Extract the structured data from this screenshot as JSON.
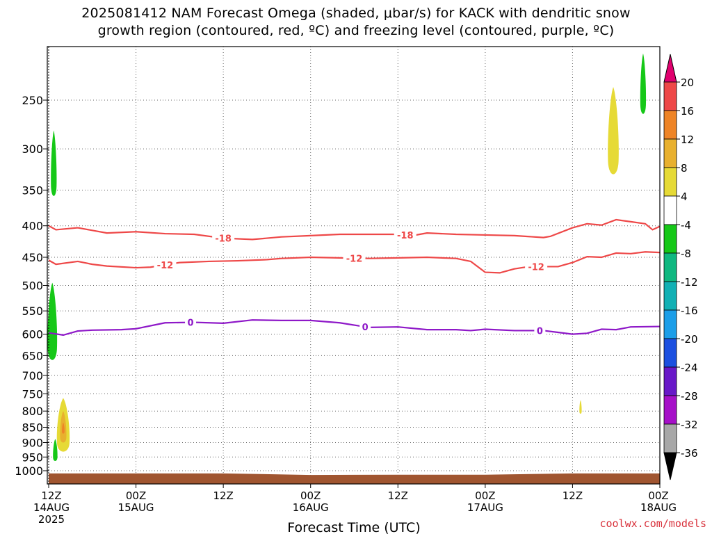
{
  "chart_data": {
    "type": "contour",
    "title_lines": [
      "2025081412 NAM Forecast Omega (shaded, μbar/s) for KACK with dendritic snow",
      "growth region (contoured, red, ºC) and freezing level (contoured, purple, ºC)"
    ],
    "xlabel": "Forecast Time (UTC)",
    "x_ticks": [
      {
        "hour": 0,
        "line1": "12Z",
        "line2": "14AUG",
        "line3": "2025"
      },
      {
        "hour": 12,
        "line1": "00Z",
        "line2": "15AUG",
        "line3": ""
      },
      {
        "hour": 24,
        "line1": "12Z",
        "line2": "",
        "line3": ""
      },
      {
        "hour": 36,
        "line1": "00Z",
        "line2": "16AUG",
        "line3": ""
      },
      {
        "hour": 48,
        "line1": "12Z",
        "line2": "",
        "line3": ""
      },
      {
        "hour": 60,
        "line1": "00Z",
        "line2": "17AUG",
        "line3": ""
      },
      {
        "hour": 72,
        "line1": "12Z",
        "line2": "",
        "line3": ""
      },
      {
        "hour": 84,
        "line1": "00Z",
        "line2": "18AUG",
        "line3": ""
      }
    ],
    "y_scale": "log-pressure",
    "y_ticks": [
      250,
      300,
      350,
      400,
      450,
      500,
      550,
      600,
      650,
      700,
      750,
      800,
      850,
      900,
      950,
      1000
    ],
    "colorbar": {
      "levels": [
        20,
        16,
        12,
        8,
        4,
        -4,
        -8,
        -12,
        -16,
        -20,
        -24,
        -28,
        -32,
        -36
      ],
      "colors": [
        "#e0006e",
        "#ee4848",
        "#ee8426",
        "#e8b02e",
        "#e6da36",
        "#ffffff",
        "#16c818",
        "#10b880",
        "#12b0b4",
        "#1c9ee8",
        "#1c50e0",
        "#6818c8",
        "#a610c8",
        "#a8a8a8",
        "#000000"
      ]
    },
    "contours": [
      {
        "label": "-18",
        "color": "#ee4848",
        "label_hours": [
          24,
          49
        ],
        "points": [
          [
            0,
            400
          ],
          [
            1,
            406
          ],
          [
            4,
            403
          ],
          [
            8,
            411
          ],
          [
            12,
            409
          ],
          [
            16,
            412
          ],
          [
            20,
            413
          ],
          [
            24,
            419
          ],
          [
            28,
            421
          ],
          [
            32,
            417
          ],
          [
            36,
            415
          ],
          [
            40,
            413
          ],
          [
            44,
            413
          ],
          [
            48,
            413
          ],
          [
            50,
            415
          ],
          [
            52,
            411
          ],
          [
            56,
            413
          ],
          [
            60,
            414
          ],
          [
            64,
            415
          ],
          [
            68,
            418
          ],
          [
            69,
            416
          ],
          [
            72,
            403
          ],
          [
            74,
            397
          ],
          [
            76,
            399
          ],
          [
            78,
            391
          ],
          [
            80,
            394
          ],
          [
            82,
            397
          ],
          [
            83,
            406
          ],
          [
            84,
            401
          ]
        ]
      },
      {
        "label": "-12",
        "color": "#ee4848",
        "label_hours": [
          16,
          42,
          67
        ],
        "points": [
          [
            0,
            455
          ],
          [
            1,
            462
          ],
          [
            4,
            457
          ],
          [
            6,
            462
          ],
          [
            8,
            465
          ],
          [
            12,
            468
          ],
          [
            14,
            467
          ],
          [
            16,
            463
          ],
          [
            18,
            459
          ],
          [
            22,
            457
          ],
          [
            26,
            456
          ],
          [
            30,
            454
          ],
          [
            32,
            452
          ],
          [
            36,
            450
          ],
          [
            40,
            451
          ],
          [
            44,
            452
          ],
          [
            48,
            451
          ],
          [
            52,
            450
          ],
          [
            56,
            452
          ],
          [
            58,
            457
          ],
          [
            60,
            476
          ],
          [
            62,
            477
          ],
          [
            64,
            470
          ],
          [
            66,
            466
          ],
          [
            70,
            466
          ],
          [
            72,
            459
          ],
          [
            74,
            449
          ],
          [
            76,
            450
          ],
          [
            78,
            443
          ],
          [
            80,
            444
          ],
          [
            82,
            441
          ],
          [
            84,
            442
          ]
        ]
      },
      {
        "label": "0",
        "color": "#8e18c8",
        "label_hours": [
          19.5,
          43.5,
          67.5
        ],
        "points": [
          [
            0,
            597
          ],
          [
            2,
            602
          ],
          [
            4,
            593
          ],
          [
            6,
            591
          ],
          [
            10,
            590
          ],
          [
            12,
            588
          ],
          [
            16,
            575
          ],
          [
            20,
            574
          ],
          [
            24,
            576
          ],
          [
            28,
            569
          ],
          [
            32,
            570
          ],
          [
            36,
            570
          ],
          [
            40,
            575
          ],
          [
            42,
            580
          ],
          [
            44,
            585
          ],
          [
            48,
            584
          ],
          [
            52,
            590
          ],
          [
            56,
            590
          ],
          [
            58,
            592
          ],
          [
            60,
            589
          ],
          [
            64,
            592
          ],
          [
            68,
            592
          ],
          [
            70,
            596
          ],
          [
            72,
            600
          ],
          [
            74,
            598
          ],
          [
            76,
            589
          ],
          [
            78,
            590
          ],
          [
            80,
            584
          ],
          [
            84,
            583
          ]
        ]
      }
    ],
    "omega_regions": [
      {
        "value": -6,
        "hour": 0.7,
        "p_top": 280,
        "p_bot": 362,
        "half_width": 0.45
      },
      {
        "value": -6,
        "hour": 0.5,
        "p_top": 495,
        "p_bot": 670,
        "half_width": 0.75
      },
      {
        "value": -6,
        "hour": 0.9,
        "p_top": 888,
        "p_bot": 968,
        "half_width": 0.35
      },
      {
        "value": 6,
        "hour": 2.0,
        "p_top": 762,
        "p_bot": 940,
        "half_width": 1.0
      },
      {
        "value": 10,
        "hour": 2.0,
        "p_top": 800,
        "p_bot": 905,
        "half_width": 0.5
      },
      {
        "value": 14,
        "hour": 2.0,
        "p_top": 835,
        "p_bot": 872,
        "half_width": 0.2
      },
      {
        "value": 6,
        "hour": 77.6,
        "p_top": 238,
        "p_bot": 335,
        "half_width": 0.85
      },
      {
        "value": -6,
        "hour": 81.7,
        "p_top": 210,
        "p_bot": 266,
        "half_width": 0.45
      },
      {
        "value": 6,
        "hour": 73.1,
        "p_top": 768,
        "p_bot": 810,
        "half_width": 0.18
      }
    ],
    "terrain_top_hpa": [
      [
        0,
        1010
      ],
      [
        12,
        1010
      ],
      [
        24,
        1010
      ],
      [
        36,
        1016
      ],
      [
        48,
        1015
      ],
      [
        60,
        1015
      ],
      [
        72,
        1010
      ],
      [
        84,
        1010
      ]
    ],
    "terrain_color": "#a05530"
  },
  "credit": "coolwx.com/models"
}
